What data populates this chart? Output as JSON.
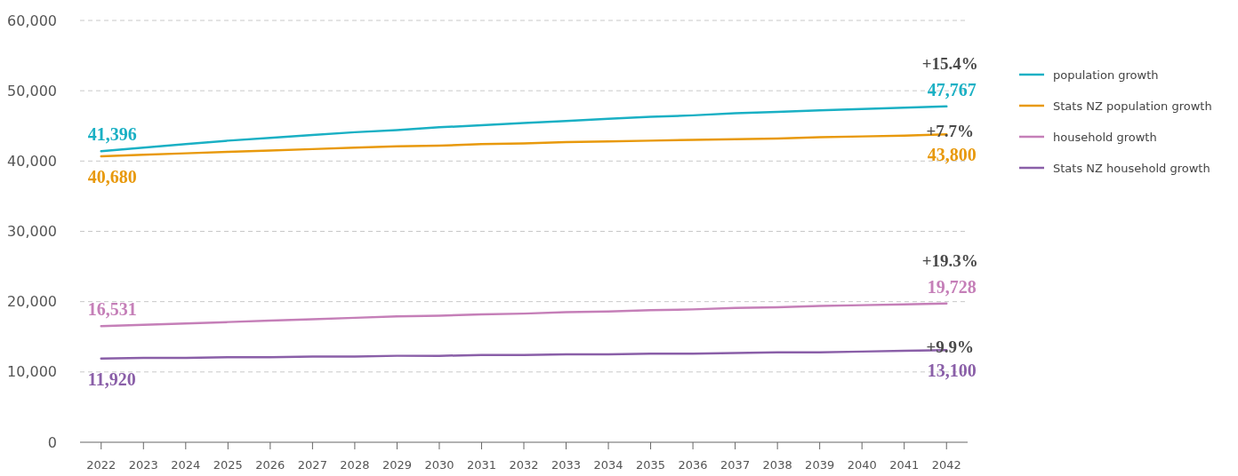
{
  "chart_data": {
    "type": "line",
    "x": [
      2022,
      2023,
      2024,
      2025,
      2026,
      2027,
      2028,
      2029,
      2030,
      2031,
      2032,
      2033,
      2034,
      2035,
      2036,
      2037,
      2038,
      2039,
      2040,
      2041,
      2042
    ],
    "series": [
      {
        "name": "population growth",
        "color": "#1ab0c4",
        "values": [
          41396,
          41900,
          42400,
          42900,
          43300,
          43700,
          44100,
          44400,
          44800,
          45100,
          45400,
          45700,
          46000,
          46300,
          46500,
          46800,
          47000,
          47200,
          47400,
          47600,
          47767
        ],
        "value_labels": [
          "41,396",
          null,
          null,
          null,
          null,
          null,
          null,
          null,
          null,
          null,
          null,
          null,
          null,
          null,
          null,
          null,
          null,
          null,
          null,
          null,
          "47,767"
        ]
      },
      {
        "name": "Stats NZ population growth",
        "color": "#e8990c",
        "values": [
          40680,
          40900,
          41100,
          41300,
          41500,
          41700,
          41900,
          42100,
          42200,
          42400,
          42500,
          42700,
          42800,
          42900,
          43000,
          43100,
          43200,
          43400,
          43500,
          43600,
          43800
        ],
        "value_labels": [
          "40,680",
          null,
          null,
          null,
          null,
          null,
          null,
          null,
          null,
          null,
          null,
          null,
          null,
          null,
          null,
          null,
          null,
          null,
          null,
          null,
          "43,800"
        ]
      },
      {
        "name": "household growth",
        "color": "#c57fb8",
        "values": [
          16531,
          16700,
          16900,
          17100,
          17300,
          17500,
          17700,
          17900,
          18000,
          18200,
          18300,
          18500,
          18600,
          18800,
          18900,
          19100,
          19200,
          19400,
          19500,
          19600,
          19728
        ],
        "value_labels": [
          "16,531",
          null,
          null,
          null,
          null,
          null,
          null,
          null,
          null,
          null,
          null,
          null,
          null,
          null,
          null,
          null,
          null,
          null,
          null,
          null,
          "19,728"
        ]
      },
      {
        "name": "Stats NZ household growth",
        "color": "#8a5fa8",
        "values": [
          11920,
          12000,
          12000,
          12100,
          12100,
          12200,
          12200,
          12300,
          12300,
          12400,
          12400,
          12500,
          12500,
          12600,
          12600,
          12700,
          12800,
          12800,
          12900,
          13000,
          13100
        ],
        "value_labels": [
          "11,920",
          null,
          null,
          null,
          null,
          null,
          null,
          null,
          null,
          null,
          null,
          null,
          null,
          null,
          null,
          null,
          null,
          null,
          null,
          null,
          "13,100"
        ]
      }
    ],
    "annotations": [
      "+15.4%",
      "+7.7%",
      "+19.3%",
      "+9.9%"
    ],
    "xlim": [
      2021.5,
      2042.5
    ],
    "xticks": [
      2022,
      2023,
      2024,
      2025,
      2026,
      2027,
      2028,
      2029,
      2030,
      2031,
      2032,
      2033,
      2034,
      2035,
      2036,
      2037,
      2038,
      2039,
      2040,
      2041,
      2042
    ],
    "ylim": [
      0,
      60000
    ],
    "yticks": [
      0,
      {
        "value": 10000,
        "label": "10,000"
      },
      {
        "value": 20000,
        "label": "20,000"
      },
      {
        "value": 30000,
        "label": "30,000"
      },
      {
        "value": 40000,
        "label": "40,000"
      },
      {
        "value": 50000,
        "label": "50,000"
      },
      {
        "value": 60000,
        "label": "60,000"
      }
    ],
    "grid": "y",
    "legend": "right",
    "marker": "none",
    "line_style": "solid"
  }
}
